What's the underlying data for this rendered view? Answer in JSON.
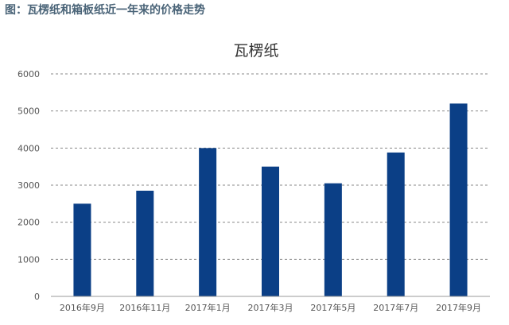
{
  "figure_heading": "图：瓦楞纸和箱板纸近一年来的价格走势",
  "colors": {
    "heading": "#4a6478",
    "bar": "#0b3f86",
    "grid": "#8a8a8a",
    "axis": "#999999",
    "label": "#555555",
    "title": "#333333"
  },
  "chart_data": {
    "type": "bar",
    "title": "瓦楞纸",
    "xlabel": "",
    "ylabel": "",
    "categories": [
      "2016年9月",
      "2016年11月",
      "2017年1月",
      "2017年3月",
      "2017年5月",
      "2017年7月",
      "2017年9月"
    ],
    "values": [
      2500,
      2850,
      4000,
      3500,
      3050,
      3880,
      5200
    ],
    "ylim": [
      0,
      6000
    ],
    "yticks": [
      "0",
      "1000",
      "2000",
      "3000",
      "4000",
      "5000",
      "6000"
    ],
    "grid": "dashed horizontal",
    "legend": "none"
  }
}
